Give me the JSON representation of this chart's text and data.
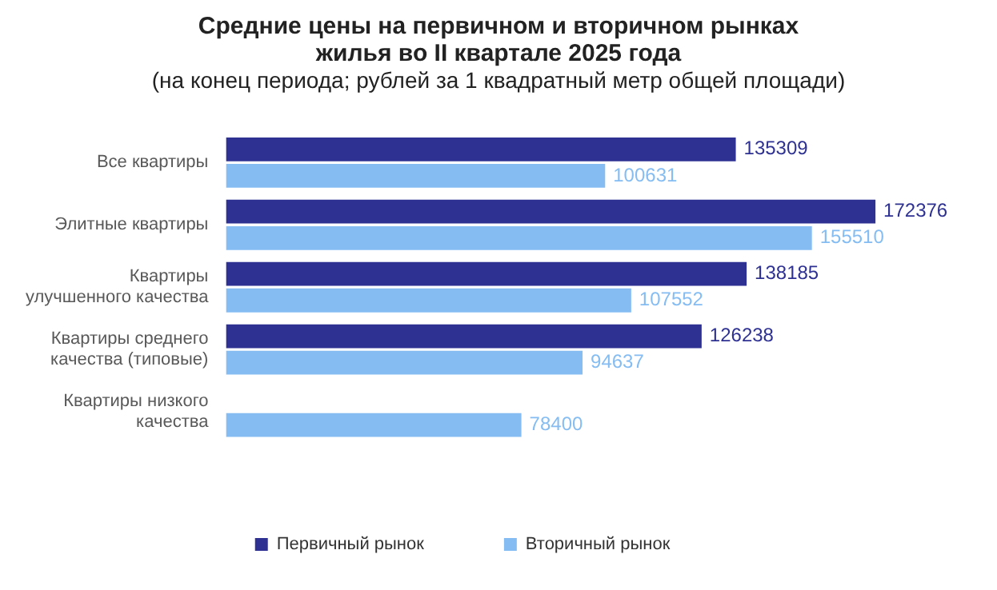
{
  "chart_data": {
    "type": "bar",
    "orientation": "horizontal",
    "title": "Средние цены на первичном и вторичном рынках жилья во II квартале 2025 года",
    "subtitle": "(на конец периода; рублей за 1 квадратный метр общей площади)",
    "categories": [
      "Все квартиры",
      "Элитные квартиры",
      "Квартиры\nулучшенного качества",
      "Квартиры среднего\nкачества (типовые)",
      "Квартиры низкого\nкачества"
    ],
    "series": [
      {
        "name": "Первичный рынок",
        "color": "#2e3192",
        "values": [
          135309,
          172376,
          138185,
          126238,
          null
        ]
      },
      {
        "name": "Вторичный рынок",
        "color": "#85bdf3",
        "values": [
          100631,
          155510,
          107552,
          94637,
          78400
        ]
      }
    ],
    "relative": false,
    "data_labels": true,
    "legend": "bottom",
    "grid": false
  }
}
